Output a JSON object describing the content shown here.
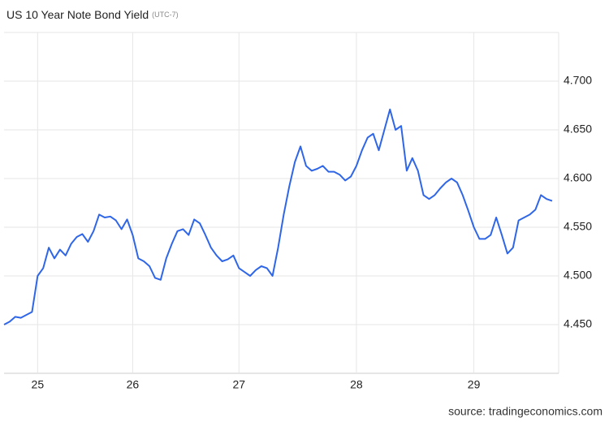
{
  "chart_data": {
    "type": "line",
    "title": "US 10 Year Note Bond Yield",
    "subtitle": "(UTC-7)",
    "source": "source: tradingeconomics.com",
    "categories": [
      null,
      null,
      null,
      null,
      null,
      null,
      "25",
      null,
      null,
      null,
      null,
      null,
      null,
      null,
      null,
      null,
      null,
      null,
      null,
      null,
      null,
      null,
      null,
      "26",
      null,
      null,
      null,
      null,
      null,
      null,
      null,
      null,
      null,
      null,
      null,
      null,
      null,
      null,
      null,
      null,
      null,
      null,
      "27",
      null,
      null,
      null,
      null,
      null,
      null,
      null,
      null,
      null,
      null,
      null,
      null,
      null,
      null,
      null,
      null,
      null,
      null,
      null,
      null,
      "28",
      null,
      null,
      null,
      null,
      null,
      null,
      null,
      null,
      null,
      null,
      null,
      null,
      null,
      null,
      null,
      null,
      null,
      null,
      null,
      null,
      "29",
      null,
      null,
      null,
      null,
      null,
      null,
      null,
      null,
      null,
      null,
      null,
      null,
      null,
      null
    ],
    "values": [
      4.45,
      4.453,
      4.458,
      4.457,
      4.46,
      4.463,
      4.5,
      4.508,
      4.529,
      4.518,
      4.527,
      4.521,
      4.533,
      4.54,
      4.543,
      4.535,
      4.546,
      4.563,
      4.56,
      4.561,
      4.557,
      4.548,
      4.558,
      4.542,
      4.518,
      4.515,
      4.51,
      4.498,
      4.496,
      4.518,
      4.533,
      4.546,
      4.548,
      4.542,
      4.558,
      4.554,
      4.542,
      4.529,
      4.521,
      4.515,
      4.517,
      4.521,
      4.508,
      4.504,
      4.5,
      4.506,
      4.51,
      4.508,
      4.5,
      4.529,
      4.563,
      4.592,
      4.617,
      4.633,
      4.613,
      4.608,
      4.61,
      4.613,
      4.607,
      4.607,
      4.604,
      4.598,
      4.602,
      4.613,
      4.629,
      4.642,
      4.646,
      4.629,
      4.65,
      4.671,
      4.65,
      4.654,
      4.608,
      4.621,
      4.608,
      4.583,
      4.579,
      4.583,
      4.59,
      4.596,
      4.6,
      4.596,
      4.583,
      4.567,
      4.55,
      4.538,
      4.538,
      4.542,
      4.56,
      4.542,
      4.523,
      4.529,
      4.557,
      4.56,
      4.563,
      4.568,
      4.583,
      4.579,
      4.577
    ],
    "color": "#2f66e8",
    "ylim": [
      4.4,
      4.75
    ],
    "yticks": [
      {
        "value": 4.45,
        "label": "4.450"
      },
      {
        "value": 4.5,
        "label": "4.500"
      },
      {
        "value": 4.55,
        "label": "4.550"
      },
      {
        "value": 4.6,
        "label": "4.600"
      },
      {
        "value": 4.65,
        "label": "4.650"
      },
      {
        "value": 4.7,
        "label": "4.700"
      }
    ],
    "grid": true
  }
}
